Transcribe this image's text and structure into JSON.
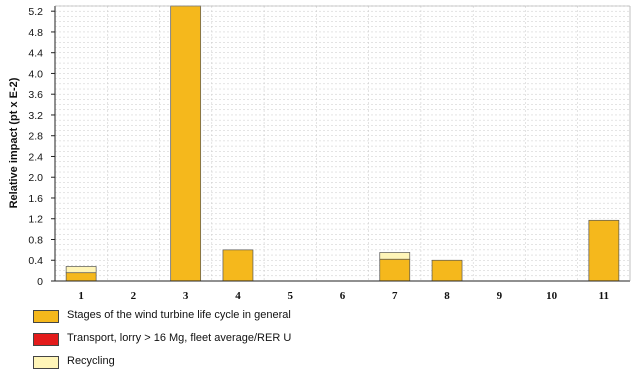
{
  "chart_data": {
    "type": "bar",
    "stacked": true,
    "categories": [
      "1",
      "2",
      "3",
      "4",
      "5",
      "6",
      "7",
      "8",
      "9",
      "10",
      "11"
    ],
    "series": [
      {
        "name": "Stages of the wind turbine life cycle in general",
        "color": "#f5b81c",
        "values": [
          0.16,
          0,
          5.3,
          0.6,
          0,
          0,
          0.42,
          0.4,
          0,
          0,
          1.17
        ]
      },
      {
        "name": "Transport, lorry > 16 Mg, fleet average/RER U",
        "color": "#e31b1b",
        "values": [
          0,
          0,
          0,
          0,
          0,
          0,
          0,
          0,
          0,
          0,
          0
        ]
      },
      {
        "name": "Recycling",
        "color": "#fff5b8",
        "values": [
          0.12,
          0,
          0,
          0,
          0,
          0,
          0.13,
          0,
          0,
          0,
          0
        ]
      }
    ],
    "ylabel": "Relative impact  (pt x E-2)",
    "ylim": [
      0,
      5.3
    ],
    "yticks": [
      "0",
      "0.4",
      "0.8",
      "1.2",
      "1.6",
      "2.0",
      "2.4",
      "2.8",
      "3.2",
      "3.6",
      "4.0",
      "4.4",
      "4.8",
      "5.2"
    ],
    "grid": true,
    "legend_position": "bottom"
  }
}
